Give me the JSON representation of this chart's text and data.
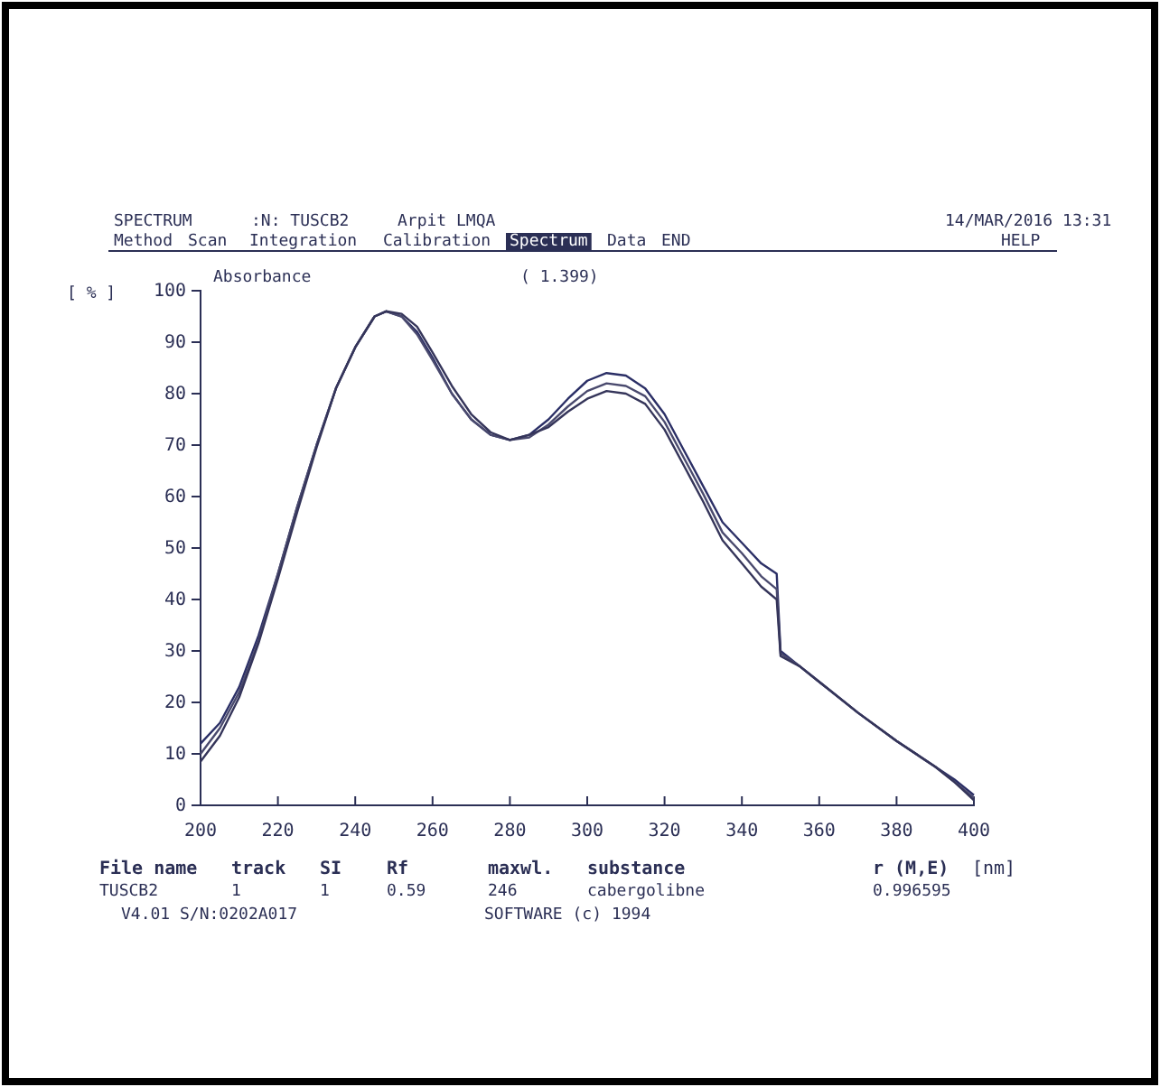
{
  "chart_data": {
    "type": "line",
    "subtitle": "Absorbance",
    "ylabel": "[ % ]",
    "x": [
      200,
      205,
      210,
      215,
      220,
      225,
      230,
      235,
      240,
      245,
      248,
      252,
      256,
      260,
      265,
      270,
      275,
      280,
      285,
      290,
      295,
      300,
      305,
      310,
      315,
      320,
      325,
      330,
      335,
      340,
      345,
      349,
      350,
      355,
      360,
      370,
      380,
      390,
      395,
      400
    ],
    "series": [
      {
        "color": "#2b2f66",
        "values": [
          12,
          16,
          23,
          33,
          45,
          58,
          70,
          81,
          89,
          95,
          96,
          95,
          92,
          87,
          80,
          75,
          72,
          71,
          72,
          75,
          79,
          82.5,
          84,
          83.5,
          81,
          76,
          69,
          62,
          55,
          51,
          47,
          45,
          30,
          27,
          24,
          18,
          12.5,
          7.5,
          5,
          2
        ]
      },
      {
        "color": "#4a4a6e",
        "values": [
          10,
          15,
          22,
          32,
          45,
          58,
          70,
          81,
          89,
          95,
          96,
          95,
          91.5,
          86.5,
          80,
          75,
          72,
          71,
          71.5,
          74,
          77.5,
          80.5,
          82,
          81.5,
          79.5,
          74.5,
          67.5,
          60.5,
          53,
          49,
          44.5,
          42,
          29.5,
          27,
          24,
          18,
          12.5,
          7.5,
          4.5,
          1.5
        ]
      },
      {
        "color": "#35355a",
        "values": [
          8.5,
          13.5,
          21,
          31.5,
          44,
          57,
          69.5,
          81,
          89,
          95,
          96,
          95.5,
          93,
          88,
          81.5,
          76,
          72.5,
          71,
          72,
          73.5,
          76.5,
          79,
          80.5,
          80,
          78,
          73,
          66,
          59,
          51.5,
          47,
          42.5,
          40,
          29,
          27,
          24,
          18,
          12.5,
          7.5,
          4.5,
          1
        ]
      }
    ],
    "xlim": [
      200,
      400
    ],
    "xticks": [
      200,
      220,
      240,
      260,
      280,
      300,
      320,
      340,
      360,
      380,
      400
    ],
    "ylim": [
      0,
      100
    ],
    "yticks": [
      0,
      10,
      20,
      30,
      40,
      50,
      60,
      70,
      80,
      90,
      100
    ],
    "line_style": "solid",
    "annotations": [
      "( 1.399)",
      "SPECTRUM",
      ":N: TUSCB2",
      "Arpit LMQA",
      "14/MAR/2016 13:31",
      "Method",
      "Scan",
      "Integration",
      "Calibration",
      "Spectrum",
      "Data",
      "END",
      "HELP",
      "File name",
      "track",
      "SI",
      "Rf",
      "maxwl.",
      "substance",
      "r (M,E)",
      "[nm]",
      "TUSCB2",
      "1",
      "1",
      "0.59",
      "246",
      "cabergolibne",
      "0.996595",
      "V4.01 S/N:0202A017",
      "SOFTWARE (c) 1994"
    ]
  }
}
